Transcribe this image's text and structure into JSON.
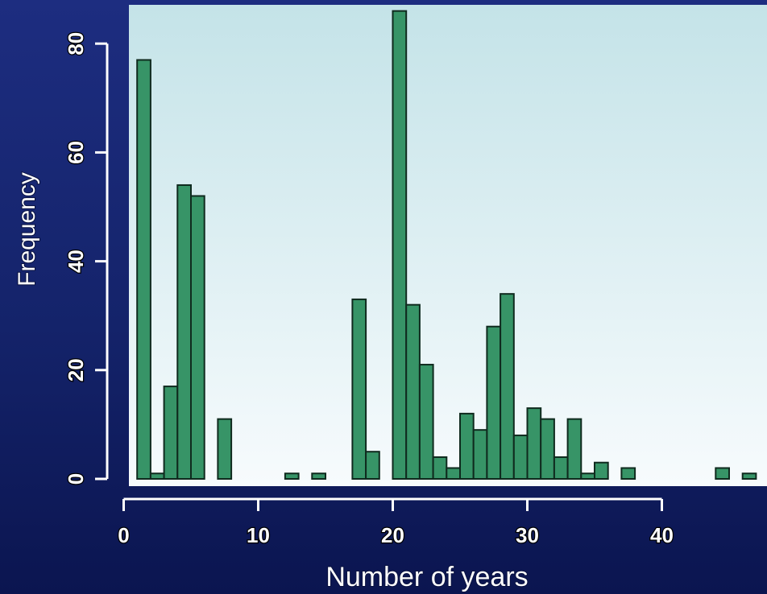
{
  "chart_data": {
    "type": "bar",
    "title": "",
    "xlabel": "Number of years",
    "ylabel": "Frequency",
    "xlim": [
      0,
      47.5
    ],
    "ylim": [
      0,
      86
    ],
    "xticks": [
      0,
      10,
      20,
      30,
      40
    ],
    "yticks": [
      0,
      20,
      40,
      60,
      80
    ],
    "grid": false,
    "colors": {
      "bar_fill": "#379467",
      "bar_stroke": "#0f2a1e",
      "panel_top": "#c4e3e8",
      "panel_bottom": "#f7fbfd",
      "axis": "#ffffff",
      "background": "#1a2a78"
    },
    "bin_width": 1,
    "bins_start": [
      1,
      2,
      3,
      4,
      5,
      6,
      7,
      8,
      9,
      10,
      11,
      12,
      13,
      14,
      15,
      16,
      17,
      18,
      19,
      20,
      21,
      22,
      23,
      24,
      25,
      26,
      27,
      28,
      29,
      30,
      31,
      32,
      33,
      34,
      35,
      36,
      37,
      38,
      39,
      40,
      41,
      42,
      43,
      44,
      45,
      46
    ],
    "values": [
      77,
      1,
      17,
      54,
      52,
      0,
      11,
      0,
      0,
      0,
      0,
      1,
      0,
      1,
      0,
      0,
      33,
      5,
      0,
      86,
      32,
      21,
      4,
      2,
      12,
      9,
      28,
      34,
      8,
      13,
      11,
      4,
      11,
      1,
      3,
      0,
      2,
      0,
      0,
      0,
      0,
      0,
      0,
      2,
      0,
      1
    ]
  }
}
